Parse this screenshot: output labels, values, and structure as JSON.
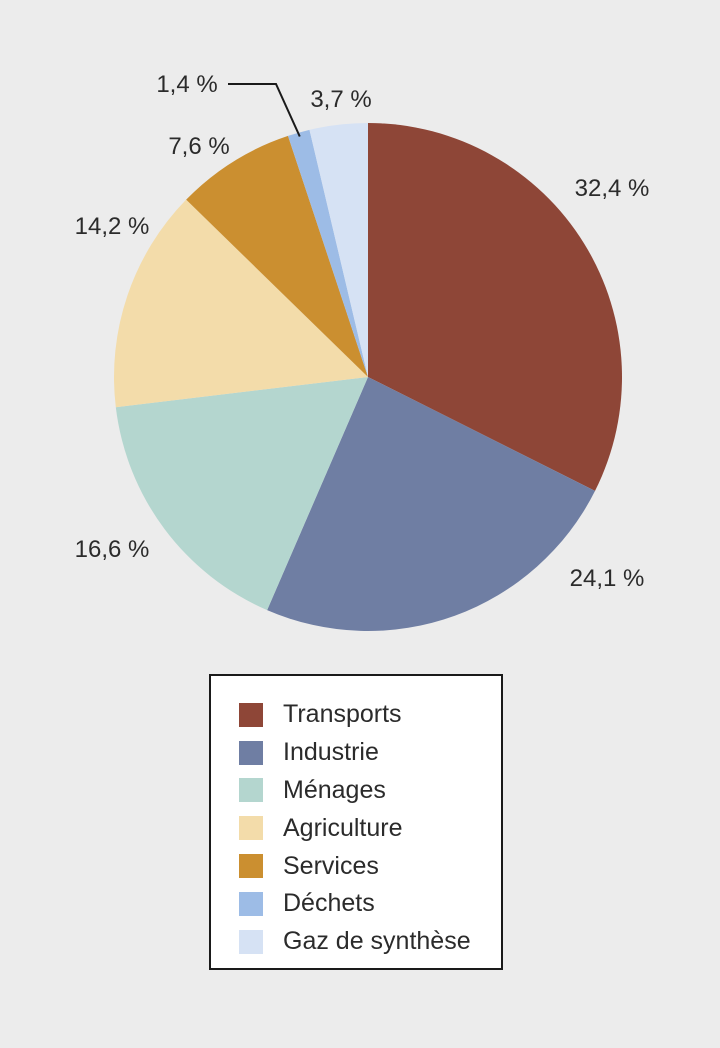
{
  "chart_data": {
    "type": "pie",
    "start": "12 o'clock",
    "direction": "clockwise",
    "legend_position": "bottom",
    "slices": [
      {
        "name": "Transports",
        "value": 32.4,
        "label": "32,4 %",
        "color": "#8e4637"
      },
      {
        "name": "Industrie",
        "value": 24.1,
        "label": "24,1 %",
        "color": "#6f7ea3"
      },
      {
        "name": "Ménages",
        "value": 16.6,
        "label": "16,6 %",
        "color": "#b4d6cf"
      },
      {
        "name": "Agriculture",
        "value": 14.2,
        "label": "14,2 %",
        "color": "#f3dcaa"
      },
      {
        "name": "Services",
        "value": 7.6,
        "label": "7,6 %",
        "color": "#cb8f30"
      },
      {
        "name": "Déchets",
        "value": 1.4,
        "label": "1,4 %",
        "color": "#9dbce6"
      },
      {
        "name": "Gaz de synthèse",
        "value": 3.7,
        "label": "3,7 %",
        "color": "#d6e2f4"
      }
    ]
  }
}
